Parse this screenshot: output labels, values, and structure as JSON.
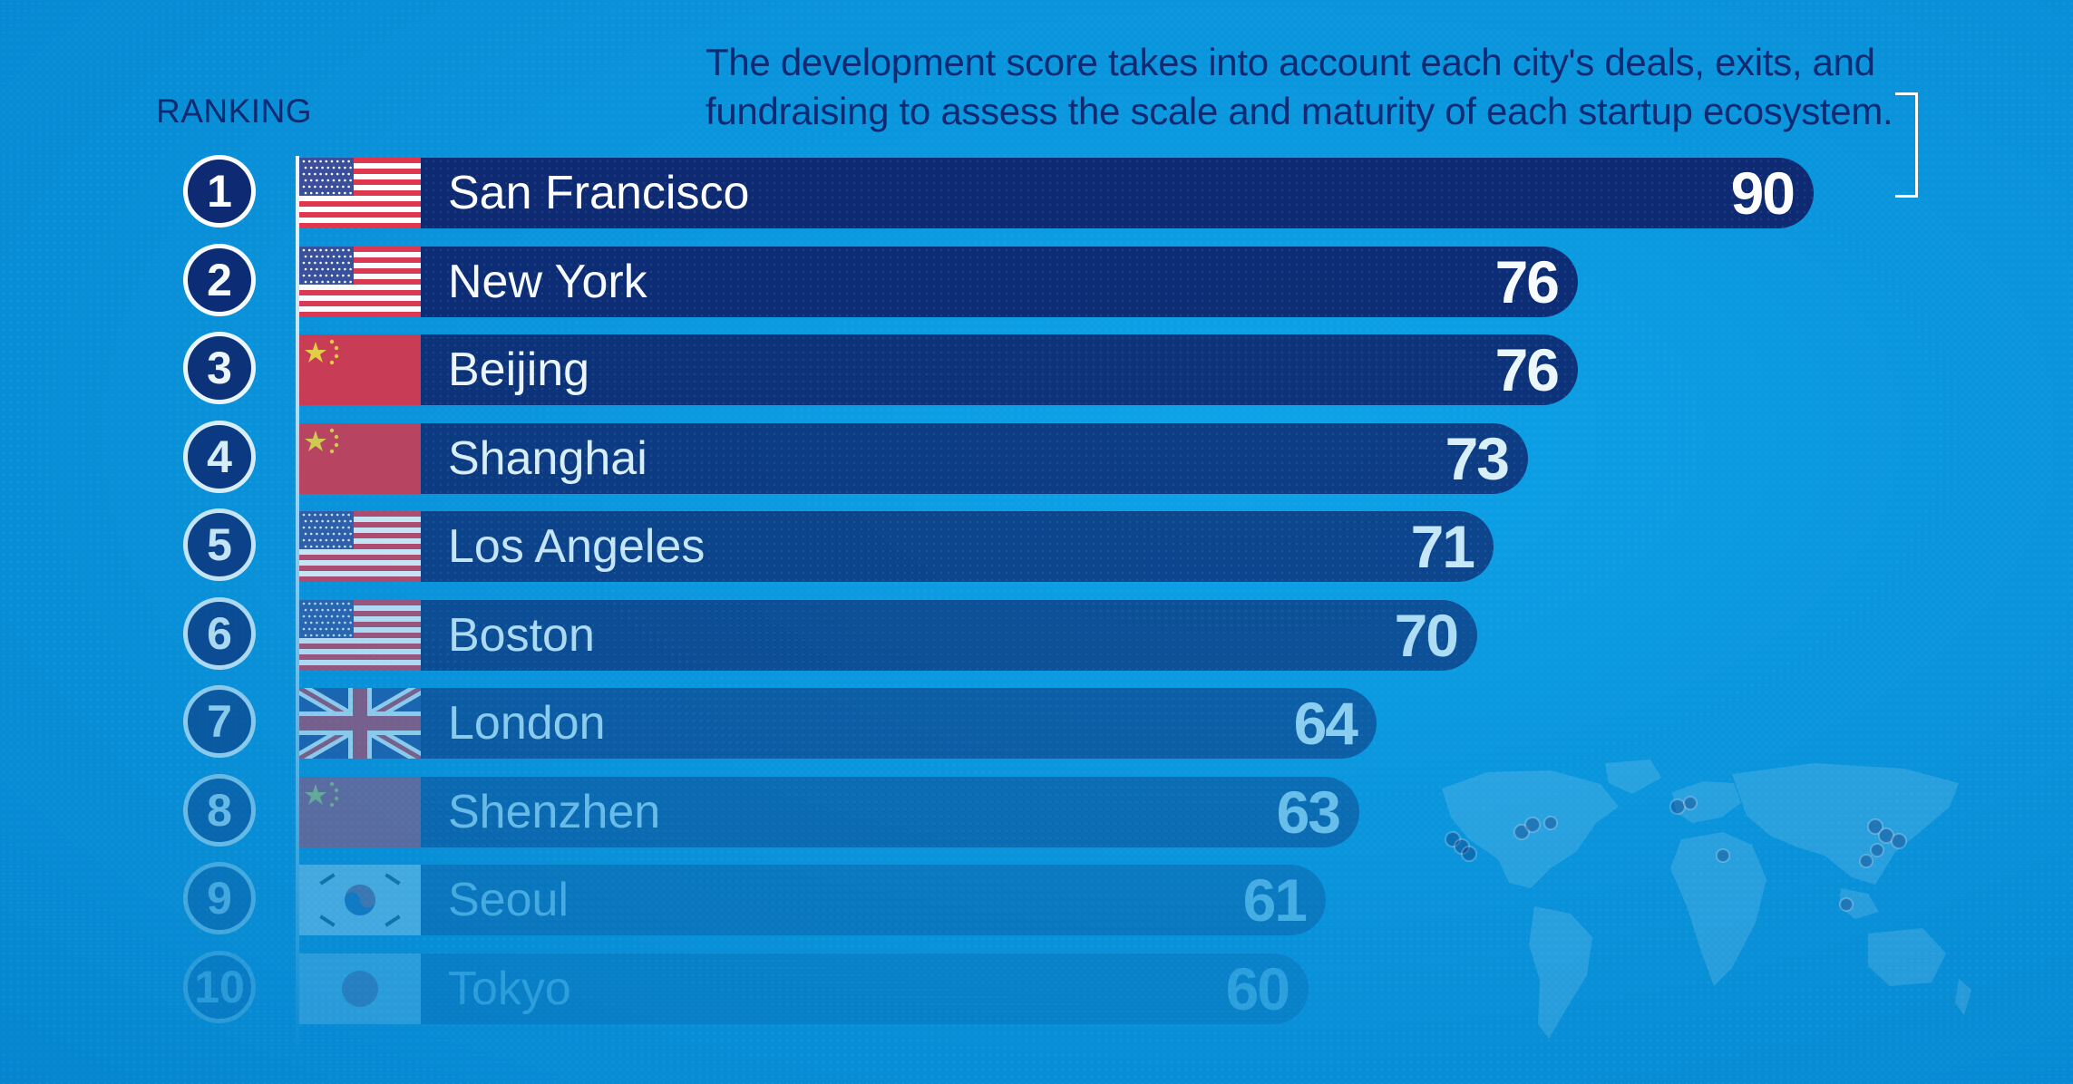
{
  "caption": "The development score takes into account each city's deals, exits, and fundraising to assess the scale and maturity of each startup ecosystem.",
  "ranking_label": "RANKING",
  "colors": {
    "background": "#0a95dc",
    "bar": "#0d2a72",
    "text_dark": "#0d2a72",
    "text_light": "#ffffff"
  },
  "chart_data": {
    "type": "bar",
    "orientation": "horizontal",
    "categories": [
      "San Francisco",
      "New York",
      "Beijing",
      "Shanghai",
      "Los Angeles",
      "Boston",
      "London",
      "Shenzhen",
      "Seoul",
      "Tokyo"
    ],
    "ranks": [
      "1",
      "2",
      "3",
      "4",
      "5",
      "6",
      "7",
      "8",
      "9",
      "10"
    ],
    "values": [
      90,
      76,
      76,
      73,
      71,
      70,
      64,
      63,
      61,
      60
    ],
    "flags": [
      "us-flag",
      "us-flag",
      "china-flag",
      "china-flag",
      "us-flag",
      "us-flag",
      "uk-flag",
      "china-flag",
      "korea-flag",
      "japan-flag"
    ],
    "title": "",
    "xlabel": "",
    "ylabel": "",
    "grid": false,
    "legend": "none"
  }
}
